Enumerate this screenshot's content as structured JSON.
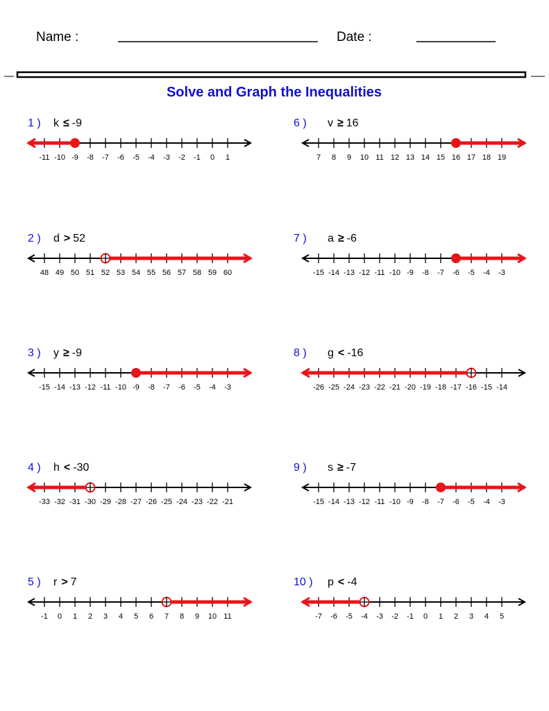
{
  "header": {
    "name_label": "Name :",
    "date_label": "Date :"
  },
  "title": "Solve and Graph the Inequalities",
  "problems": [
    {
      "number": "1 )",
      "variable": "k",
      "symbol": "≤",
      "value": -9,
      "ticks": [
        -11,
        -10,
        -9,
        -8,
        -7,
        -6,
        -5,
        -4,
        -3,
        -2,
        -1,
        0,
        1
      ]
    },
    {
      "number": "2 )",
      "variable": "d",
      "symbol": ">",
      "value": 52,
      "ticks": [
        48,
        49,
        50,
        51,
        52,
        53,
        54,
        55,
        56,
        57,
        58,
        59,
        60
      ]
    },
    {
      "number": "3 )",
      "variable": "y",
      "symbol": "≥",
      "value": -9,
      "ticks": [
        -15,
        -14,
        -13,
        -12,
        -11,
        -10,
        -9,
        -8,
        -7,
        -6,
        -5,
        -4,
        -3
      ]
    },
    {
      "number": "4 )",
      "variable": "h",
      "symbol": "<",
      "value": -30,
      "ticks": [
        -33,
        -32,
        -31,
        -30,
        -29,
        -28,
        -27,
        -26,
        -25,
        -24,
        -23,
        -22,
        -21
      ]
    },
    {
      "number": "5 )",
      "variable": "r",
      "symbol": ">",
      "value": 7,
      "ticks": [
        -1,
        0,
        1,
        2,
        3,
        4,
        5,
        6,
        7,
        8,
        9,
        10,
        11
      ]
    },
    {
      "number": "6 )",
      "variable": "v",
      "symbol": "≥",
      "value": 16,
      "ticks": [
        7,
        8,
        9,
        10,
        11,
        12,
        13,
        14,
        15,
        16,
        17,
        18,
        19
      ]
    },
    {
      "number": "7 )",
      "variable": "a",
      "symbol": "≥",
      "value": -6,
      "ticks": [
        -15,
        -14,
        -13,
        -12,
        -11,
        -10,
        -9,
        -8,
        -7,
        -6,
        -5,
        -4,
        -3
      ]
    },
    {
      "number": "8 )",
      "variable": "g",
      "symbol": "<",
      "value": -16,
      "ticks": [
        -26,
        -25,
        -24,
        -23,
        -22,
        -21,
        -20,
        -19,
        -18,
        -17,
        -16,
        -15,
        -14
      ]
    },
    {
      "number": "9 )",
      "variable": "s",
      "symbol": "≥",
      "value": -7,
      "ticks": [
        -15,
        -14,
        -13,
        -12,
        -11,
        -10,
        -9,
        -8,
        -7,
        -6,
        -5,
        -4,
        -3
      ]
    },
    {
      "number": "10 )",
      "variable": "p",
      "symbol": "<",
      "value": -4,
      "ticks": [
        -7,
        -6,
        -5,
        -4,
        -3,
        -2,
        -1,
        0,
        1,
        2,
        3,
        4,
        5
      ]
    }
  ]
}
